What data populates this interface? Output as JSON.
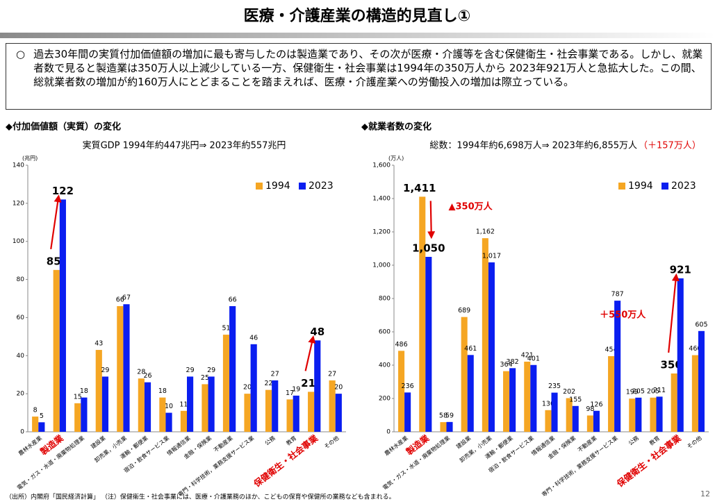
{
  "header": {
    "title": "医療・介護産業の構造的見直し①"
  },
  "summary": {
    "bullet": "○",
    "text": "過去30年間の実質付加価値額の増加に最も寄与したのは製造業であり、その次が医療・介護等を含む保健衛生・社会事業である。しかし、就業者数で見ると製造業は350万人以上減少している一方、保健衛生・社会事業は1994年の350万人から 2023年921万人と急拡大した。この間、総就業者数の増加が約160万人にとどまることを踏まえれば、医療・介護産業への労働投入の増加は際立っている。"
  },
  "chart_data": [
    {
      "type": "bar",
      "title": "◆付加価値額（実質）の変化",
      "subtitle": "実質GDP 1994年約447兆円⇒ 2023年約557兆円",
      "y_label": "(兆円)",
      "categories": [
        "農林水産業",
        "製造業",
        "電気・ガス・水道・廃棄物処理業",
        "建設業",
        "卸売業，小売業",
        "運輸・郵便業",
        "宿泊・飲食サービス業",
        "情報通信業",
        "金融・保険業",
        "不動産業",
        "専門・科学技術，業務支援サービス業",
        "公務",
        "教育",
        "保健衛生・社会事業",
        "その他"
      ],
      "series": [
        {
          "name": "1994",
          "color": "#f5a623",
          "values": [
            8,
            85,
            15,
            43,
            66,
            28,
            18,
            11,
            25,
            51,
            20,
            22,
            17,
            21,
            27
          ]
        },
        {
          "name": "2023",
          "color": "#0a1ef0",
          "values": [
            5,
            122,
            18,
            29,
            67,
            26,
            10,
            29,
            29,
            66,
            46,
            27,
            19,
            48,
            20
          ]
        }
      ],
      "ylim": [
        0,
        140
      ],
      "yticks": [
        0,
        20,
        40,
        60,
        80,
        100,
        120,
        140
      ],
      "legend": "upper right"
    },
    {
      "type": "bar",
      "title": "◆就業者数の変化",
      "subtitle": "総数：1994年約6,698万人⇒ 2023年約6,855万人",
      "subtitle_note": "（＋157万人）",
      "y_label": "(万人)",
      "categories": [
        "農林水産業",
        "製造業",
        "電気・ガス・水道・廃棄物処理業",
        "建設業",
        "卸売業，小売業",
        "運輸・郵便業",
        "宿泊・飲食サービス業",
        "情報通信業",
        "金融・保険業",
        "不動産業",
        "専門・科学技術，業務支援サービス業",
        "公務",
        "教育",
        "保健衛生・社会事業",
        "その他"
      ],
      "series": [
        {
          "name": "1994",
          "color": "#f5a623",
          "values": [
            486,
            1411,
            58,
            689,
            1162,
            364,
            421,
            130,
            202,
            98,
            454,
            199,
            205,
            350,
            460
          ],
          "value_labels": [
            "486",
            "1,411",
            "58",
            "689",
            "1,162",
            "364",
            "421",
            "130",
            "202",
            "98",
            "454",
            "199",
            "205",
            "350",
            "460"
          ]
        },
        {
          "name": "2023",
          "color": "#0a1ef0",
          "values": [
            236,
            1050,
            59,
            461,
            1017,
            382,
            401,
            235,
            155,
            126,
            787,
            205,
            211,
            921,
            605
          ],
          "value_labels": [
            "236",
            "1,050",
            "59",
            "461",
            "1,017",
            "382",
            "401",
            "235",
            "155",
            "126",
            "787",
            "205",
            "211",
            "921",
            "605"
          ]
        }
      ],
      "annotations": [
        "▲350万人",
        "＋550万人"
      ],
      "ylim": [
        0,
        1600
      ],
      "yticks": [
        0,
        200,
        400,
        600,
        800,
        {
          "value": 1000,
          "label": "1,000"
        },
        {
          "value": 1200,
          "label": "1,200"
        },
        {
          "value": 1400,
          "label": "1,400"
        },
        {
          "value": 1600,
          "label": "1,600"
        }
      ],
      "legend": "upper right"
    }
  ],
  "footnote": "（出所）内閣府「国民経済計算」 （注）保健衛生・社会事業には、医療・介護業務のほか、こどもの保育や保健所の業務なども含まれる。",
  "page_number": "12"
}
